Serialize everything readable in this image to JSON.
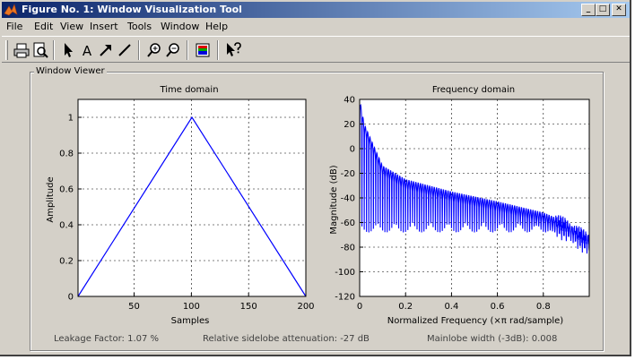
{
  "window": {
    "title": "Figure No. 1: Window Visualization Tool",
    "minimize_glyph": "_",
    "maximize_glyph": "□",
    "close_glyph": "✕"
  },
  "menu": [
    "File",
    "Edit",
    "View",
    "Insert",
    "Tools",
    "Window",
    "Help"
  ],
  "toolbar": {
    "tools": [
      "print-icon",
      "print-preview-icon",
      "pointer-arrow-icon",
      "insert-text-icon",
      "insert-arrow-icon",
      "insert-line-icon",
      "zoom-in-icon",
      "zoom-out-icon",
      "colorbar-icon",
      "whats-this-help-icon"
    ],
    "text_tool_glyph": "A"
  },
  "viewer": {
    "group_label": "Window Viewer"
  },
  "status": {
    "leakage": "Leakage Factor: 1.07 %",
    "sidelobe": "Relative sidelobe attenuation: -27 dB",
    "mainlobe": "Mainlobe width (-3dB): 0.008"
  },
  "chart_data": [
    {
      "type": "line",
      "title": "Time domain",
      "xlabel": "Samples",
      "ylabel": "Amplitude",
      "xlim": [
        1,
        200
      ],
      "ylim": [
        0,
        1.1
      ],
      "xticks": [
        50,
        100,
        150,
        200
      ],
      "yticks": [
        0,
        0.2,
        0.4,
        0.6,
        0.8,
        1
      ],
      "xtick_labels": [
        "50",
        "100",
        "150",
        "200"
      ],
      "ytick_labels": [
        "0",
        "0.2",
        "0.4",
        "0.6",
        "0.8",
        "1"
      ],
      "grid": true,
      "color": "#0000ff",
      "series": [
        {
          "x": [
            1,
            100.5,
            200
          ],
          "values": [
            0,
            1,
            0
          ]
        }
      ]
    },
    {
      "type": "line",
      "title": "Frequency domain",
      "xlabel": "Normalized Frequency  (×π rad/sample)",
      "ylabel": "Magnitude (dB)",
      "xlim": [
        0,
        1
      ],
      "ylim": [
        -120,
        40
      ],
      "xticks": [
        0,
        0.2,
        0.4,
        0.6,
        0.8
      ],
      "yticks": [
        -120,
        -100,
        -80,
        -60,
        -40,
        -20,
        0,
        20,
        40
      ],
      "xtick_labels": [
        "0",
        "0.2",
        "0.4",
        "0.6",
        "0.8"
      ],
      "ytick_labels": [
        "-120",
        "-100",
        "-80",
        "-60",
        "-40",
        "-20",
        "0",
        "20",
        "40"
      ],
      "grid": true,
      "color": "#0000ff",
      "series": [
        {
          "envelope": {
            "x": [
              0,
              0.02,
              0.1,
              0.2,
              0.4,
              0.6,
              0.8,
              0.9,
              1.0
            ],
            "values": [
              40,
              20,
              -14,
              -25,
              -35,
              -43,
              -52,
              -60,
              -72
            ]
          },
          "null_depth_dB": -60
        }
      ]
    }
  ]
}
